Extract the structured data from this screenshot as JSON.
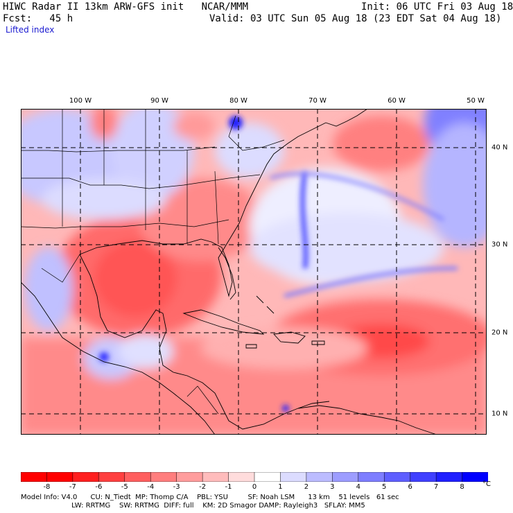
{
  "header": {
    "title": "HIWC Radar II 13km ARW-GFS init   NCAR/MMM",
    "init": "Init: 06 UTC Fri 03 Aug 18",
    "fcst": "Fcst:   45 h",
    "valid": "Valid: 03 UTC Sun 05 Aug 18 (23 EDT Sat 04 Aug 18)",
    "field": "Lifted index"
  },
  "axes": {
    "lon_labels": [
      "100 W",
      "90 W",
      "80 W",
      "70 W",
      "60 W",
      "50 W"
    ],
    "lat_labels": [
      "40 N",
      "30 N",
      "20 N",
      "10 N"
    ]
  },
  "colorbar": {
    "tick_labels": [
      "-8",
      "-7",
      "-6",
      "-5",
      "-4",
      "-3",
      "-2",
      "-1",
      "0",
      "1",
      "2",
      "3",
      "4",
      "5",
      "6",
      "7",
      "8"
    ],
    "unit": "°C",
    "colors": [
      "#ff0000",
      "#ff2020",
      "#ff4040",
      "#ff5f5f",
      "#ff7e7e",
      "#ff9d9d",
      "#ffbcbc",
      "#ffdcdc",
      "#ffffff",
      "#dcdcff",
      "#bcbcff",
      "#9d9dff",
      "#7e7eff",
      "#5f5fff",
      "#4040ff",
      "#2020ff",
      "#0000ff"
    ]
  },
  "footer": {
    "line1": "Model Info: V4.0      CU: N_Tiedt  MP: Thomp C/A    PBL: YSU         SF: Noah LSM      13 km    51 levels   61 sec",
    "line2": "                       LW: RRTMG    SW: RRTMG  DIFF: full    KM: 2D Smagor DAMP: Rayleigh3   SFLAY: MM5"
  }
}
